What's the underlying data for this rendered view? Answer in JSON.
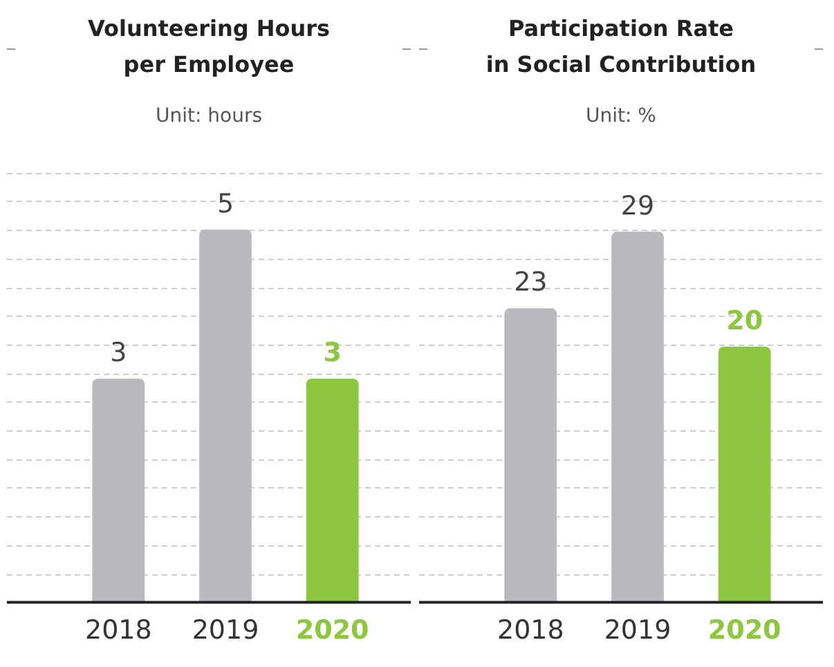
{
  "chart_data": [
    {
      "type": "bar",
      "title": "Volunteering Hours\nper Employee",
      "subtitle": "Unit: hours",
      "categories": [
        "2018",
        "2019",
        "2020"
      ],
      "values": [
        3,
        5,
        3
      ],
      "colors": [
        "#b9babd",
        "#b9babd",
        "#8dc63f"
      ],
      "grid": true,
      "data_labels": true,
      "tick_labels": "x",
      "legend": false
    },
    {
      "type": "bar",
      "title": "Participation Rate\nin Social Contribution",
      "subtitle": "Unit: %",
      "categories": [
        "2018",
        "2019",
        "2020"
      ],
      "values": [
        23,
        29,
        20
      ],
      "colors": [
        "#b9babd",
        "#b9babd",
        "#8dc63f"
      ],
      "grid": true,
      "data_labels": true,
      "tick_labels": "x",
      "legend": false
    }
  ]
}
